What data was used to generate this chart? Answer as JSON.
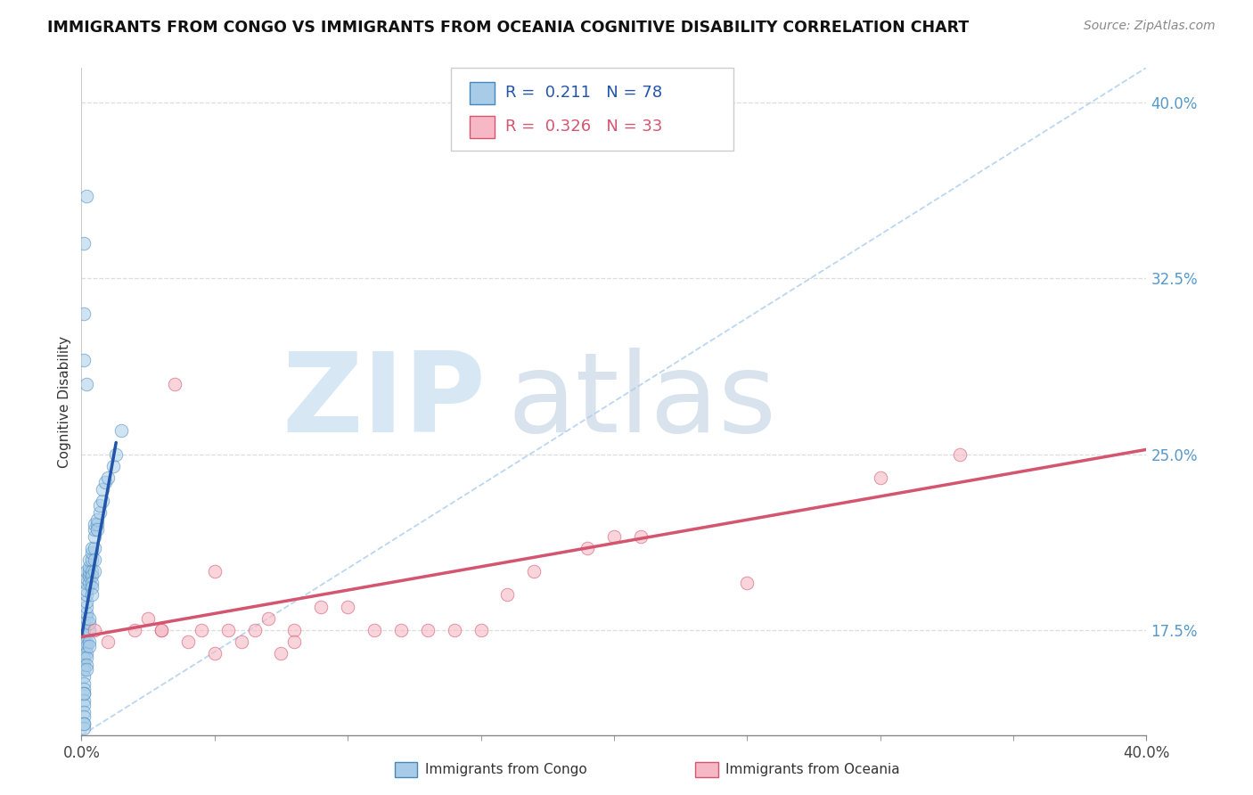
{
  "title": "IMMIGRANTS FROM CONGO VS IMMIGRANTS FROM OCEANIA COGNITIVE DISABILITY CORRELATION CHART",
  "source": "Source: ZipAtlas.com",
  "ylabel": "Cognitive Disability",
  "xlim": [
    0.0,
    0.4
  ],
  "ylim": [
    0.13,
    0.415
  ],
  "xtick_labels": [
    "0.0%",
    "40.0%"
  ],
  "xtick_positions": [
    0.0,
    0.4
  ],
  "ytick_labels": [
    "17.5%",
    "25.0%",
    "32.5%",
    "40.0%"
  ],
  "ytick_positions": [
    0.175,
    0.25,
    0.325,
    0.4
  ],
  "legend_R1": "0.211",
  "legend_N1": "78",
  "legend_R2": "0.326",
  "legend_N2": "33",
  "color_congo_fill": "#a8cce8",
  "color_congo_edge": "#4488bb",
  "color_oceania_fill": "#f5b8c4",
  "color_oceania_edge": "#d45570",
  "color_line_congo": "#2255aa",
  "color_line_oceania": "#d45570",
  "color_diag": "#aaccee",
  "watermark_zip": "ZIP",
  "watermark_atlas": "atlas",
  "background_color": "#ffffff",
  "grid_color": "#dddddd",
  "congo_x": [
    0.001,
    0.001,
    0.001,
    0.001,
    0.001,
    0.001,
    0.001,
    0.001,
    0.001,
    0.001,
    0.001,
    0.001,
    0.001,
    0.001,
    0.001,
    0.001,
    0.001,
    0.001,
    0.001,
    0.001,
    0.002,
    0.002,
    0.002,
    0.002,
    0.002,
    0.002,
    0.002,
    0.002,
    0.002,
    0.002,
    0.002,
    0.002,
    0.002,
    0.002,
    0.002,
    0.003,
    0.003,
    0.003,
    0.003,
    0.003,
    0.003,
    0.003,
    0.003,
    0.003,
    0.003,
    0.004,
    0.004,
    0.004,
    0.004,
    0.004,
    0.004,
    0.004,
    0.004,
    0.005,
    0.005,
    0.005,
    0.005,
    0.005,
    0.005,
    0.006,
    0.006,
    0.006,
    0.007,
    0.007,
    0.008,
    0.008,
    0.009,
    0.01,
    0.012,
    0.013,
    0.015,
    0.001,
    0.002,
    0.001,
    0.001,
    0.002,
    0.001,
    0.001
  ],
  "congo_y": [
    0.175,
    0.172,
    0.17,
    0.168,
    0.165,
    0.163,
    0.16,
    0.158,
    0.155,
    0.152,
    0.15,
    0.148,
    0.145,
    0.143,
    0.14,
    0.138,
    0.135,
    0.133,
    0.175,
    0.178,
    0.18,
    0.182,
    0.185,
    0.187,
    0.19,
    0.192,
    0.195,
    0.197,
    0.2,
    0.17,
    0.168,
    0.165,
    0.163,
    0.16,
    0.158,
    0.195,
    0.198,
    0.2,
    0.202,
    0.205,
    0.175,
    0.178,
    0.18,
    0.17,
    0.168,
    0.205,
    0.208,
    0.21,
    0.2,
    0.198,
    0.195,
    0.193,
    0.19,
    0.21,
    0.215,
    0.218,
    0.22,
    0.205,
    0.2,
    0.22,
    0.222,
    0.218,
    0.225,
    0.228,
    0.23,
    0.235,
    0.238,
    0.24,
    0.245,
    0.25,
    0.26,
    0.34,
    0.36,
    0.31,
    0.29,
    0.28,
    0.148,
    0.135
  ],
  "oceania_x": [
    0.005,
    0.01,
    0.02,
    0.025,
    0.03,
    0.035,
    0.04,
    0.045,
    0.05,
    0.055,
    0.06,
    0.065,
    0.07,
    0.075,
    0.08,
    0.09,
    0.1,
    0.11,
    0.12,
    0.13,
    0.14,
    0.15,
    0.16,
    0.17,
    0.19,
    0.2,
    0.21,
    0.25,
    0.3,
    0.33,
    0.03,
    0.05,
    0.08
  ],
  "oceania_y": [
    0.175,
    0.17,
    0.175,
    0.18,
    0.175,
    0.28,
    0.17,
    0.175,
    0.2,
    0.175,
    0.17,
    0.175,
    0.18,
    0.165,
    0.175,
    0.185,
    0.185,
    0.175,
    0.175,
    0.175,
    0.175,
    0.175,
    0.19,
    0.2,
    0.21,
    0.215,
    0.215,
    0.195,
    0.24,
    0.25,
    0.175,
    0.165,
    0.17
  ],
  "congo_line_x": [
    0.0,
    0.013
  ],
  "congo_line_y_start": 0.172,
  "congo_line_y_end": 0.255,
  "oceania_line_x": [
    0.0,
    0.4
  ],
  "oceania_line_y_start": 0.172,
  "oceania_line_y_end": 0.252
}
